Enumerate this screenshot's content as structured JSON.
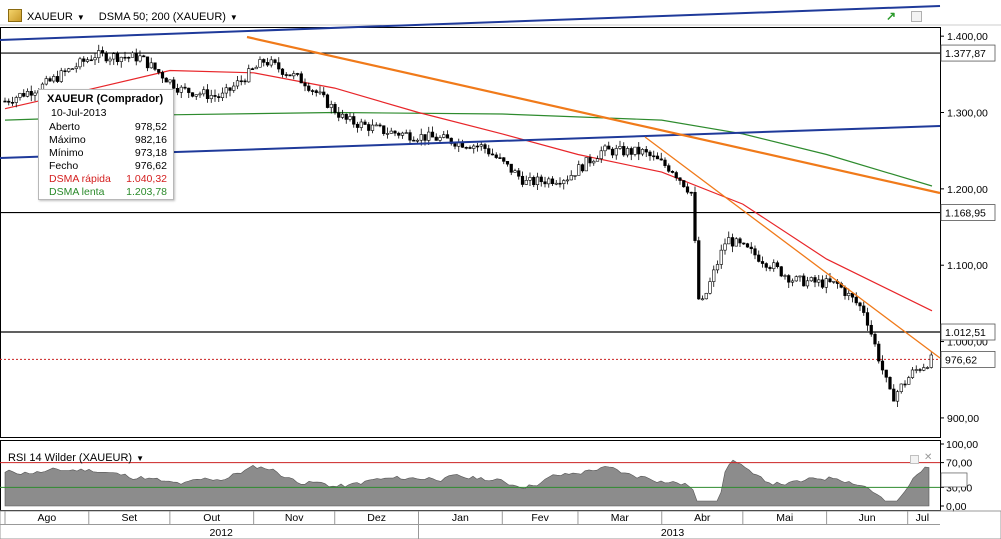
{
  "header": {
    "symbol": "XAUEUR",
    "indicator": "DSMA 50; 200 (XAUEUR)",
    "dropdown_icon": "triangle-down",
    "pencil_icon": "pencil-icon",
    "trend_icon": "trend-icon",
    "restore_icon": "restore-window-icon"
  },
  "info_box": {
    "title": "XAUEUR (Comprador)",
    "date": "10-Jul-2013",
    "rows": [
      {
        "label": "Aberto",
        "value": "978,52"
      },
      {
        "label": "Máximo",
        "value": "982,16"
      },
      {
        "label": "Mínimo",
        "value": "973,18"
      },
      {
        "label": "Fecho",
        "value": "976,62"
      },
      {
        "label": "DSMA rápida",
        "value": "1.040,32"
      },
      {
        "label": "DSMA lenta",
        "value": "1.203,78"
      }
    ]
  },
  "price_axis": {
    "ticks": [
      "1.400,00",
      "1.300,00",
      "1.200,00",
      "1.100,00",
      "1.000,00",
      "900,00"
    ],
    "tick_values": [
      1400,
      1300,
      1200,
      1100,
      1000,
      900
    ],
    "ylim": [
      875,
      1412
    ],
    "markers": [
      {
        "label": "1.377,87",
        "value": 1377.87
      },
      {
        "label": "1.168,95",
        "value": 1168.95
      },
      {
        "label": "1.012,51",
        "value": 1012.51
      },
      {
        "label": "976,62",
        "value": 976.62
      }
    ]
  },
  "rsi_panel": {
    "title": "RSI 14 Wilder (XAUEUR)",
    "ticks": [
      "100,00",
      "70,00",
      "30,00",
      "0,00"
    ],
    "tick_values": [
      100,
      70,
      30,
      0
    ],
    "levels": [
      70,
      30
    ]
  },
  "time_axis": {
    "months": [
      "Ago",
      "Set",
      "Out",
      "Nov",
      "Dez",
      "Jan",
      "Fev",
      "Mar",
      "Abr",
      "Mai",
      "Jun",
      "Jul"
    ],
    "years": [
      "2012",
      "2013"
    ]
  },
  "colors": {
    "up_candle": "#ffffff",
    "down_candle": "#000000",
    "fast_ma": "#e8262a",
    "slow_ma": "#2e8b2e",
    "channel": "#1f3a9a",
    "trendline": "#f07a1a",
    "rsi_fill": "#8c8c8c",
    "rsi_upper": "#cc2222",
    "rsi_lower": "#2e8b2e",
    "last_price": "#cc2222"
  },
  "chart_data": {
    "type": "line",
    "title": "XAUEUR",
    "x_range": [
      "2012-08-01",
      "2013-07-10"
    ],
    "ylim": [
      875,
      1412
    ],
    "series": [
      {
        "name": "XAUEUR",
        "x": [
          "2012-08-01",
          "2012-08-15",
          "2012-09-03",
          "2012-09-20",
          "2012-10-05",
          "2012-10-20",
          "2012-11-05",
          "2012-11-20",
          "2012-12-05",
          "2012-12-20",
          "2013-01-10",
          "2013-01-25",
          "2013-02-10",
          "2013-02-25",
          "2013-03-10",
          "2013-03-25",
          "2013-04-05",
          "2013-04-12",
          "2013-04-15",
          "2013-04-25",
          "2013-05-05",
          "2013-05-20",
          "2013-06-05",
          "2013-06-15",
          "2013-06-25",
          "2013-07-03",
          "2013-07-10"
        ],
        "values": [
          1315,
          1335,
          1375,
          1372,
          1330,
          1320,
          1368,
          1340,
          1290,
          1275,
          1265,
          1255,
          1208,
          1215,
          1250,
          1248,
          1225,
          1195,
          1040,
          1135,
          1115,
          1080,
          1075,
          1040,
          925,
          960,
          976.62
        ]
      },
      {
        "name": "DSMA rápida",
        "x": [
          "2012-08-01",
          "2012-09-01",
          "2012-10-01",
          "2012-11-01",
          "2012-12-01",
          "2013-01-01",
          "2013-02-01",
          "2013-03-01",
          "2013-04-01",
          "2013-05-01",
          "2013-06-01",
          "2013-07-10"
        ],
        "values": [
          1305,
          1330,
          1355,
          1352,
          1332,
          1300,
          1272,
          1245,
          1222,
          1180,
          1108,
          1040.32
        ]
      },
      {
        "name": "DSMA lenta",
        "x": [
          "2012-08-01",
          "2012-10-01",
          "2012-12-01",
          "2013-02-01",
          "2013-04-01",
          "2013-05-01",
          "2013-06-01",
          "2013-07-10"
        ],
        "values": [
          1290,
          1297,
          1300,
          1298,
          1290,
          1272,
          1245,
          1203.78
        ]
      }
    ],
    "rsi": {
      "name": "RSI 14 Wilder (XAUEUR)",
      "levels": [
        70,
        30
      ],
      "range": [
        0,
        100
      ]
    }
  }
}
